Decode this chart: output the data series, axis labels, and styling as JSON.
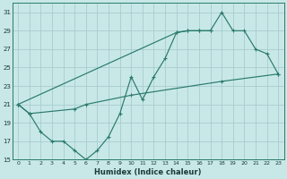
{
  "xlabel": "Humidex (Indice chaleur)",
  "background_color": "#c8e8e8",
  "grid_color": "#a8cccc",
  "line_color": "#2a7a6a",
  "ylim": [
    15,
    32
  ],
  "xlim": [
    -0.5,
    23.5
  ],
  "yticks": [
    15,
    17,
    19,
    21,
    23,
    25,
    27,
    29,
    31
  ],
  "xticks": [
    0,
    1,
    2,
    3,
    4,
    5,
    6,
    7,
    8,
    9,
    10,
    11,
    12,
    13,
    14,
    15,
    16,
    17,
    18,
    19,
    20,
    21,
    22,
    23
  ],
  "line1_x": [
    0,
    1,
    2,
    3,
    4,
    5,
    6,
    7,
    8,
    9,
    10,
    11,
    12,
    13,
    14,
    15,
    16,
    17
  ],
  "line1_y": [
    21,
    20,
    18,
    17,
    17,
    16,
    15,
    16,
    17.5,
    20,
    24,
    21.5,
    24,
    26,
    28.8,
    29,
    29,
    29
  ],
  "line2_x": [
    0,
    14,
    15,
    16,
    17,
    18,
    19,
    20,
    21,
    22,
    23
  ],
  "line2_y": [
    21,
    28.8,
    29,
    29,
    29,
    31,
    29,
    29,
    27,
    26.5,
    24.3
  ],
  "line3_x": [
    0,
    1,
    5,
    6,
    10,
    18,
    23
  ],
  "line3_y": [
    21,
    20,
    20.5,
    21,
    22,
    23.5,
    24.3
  ]
}
